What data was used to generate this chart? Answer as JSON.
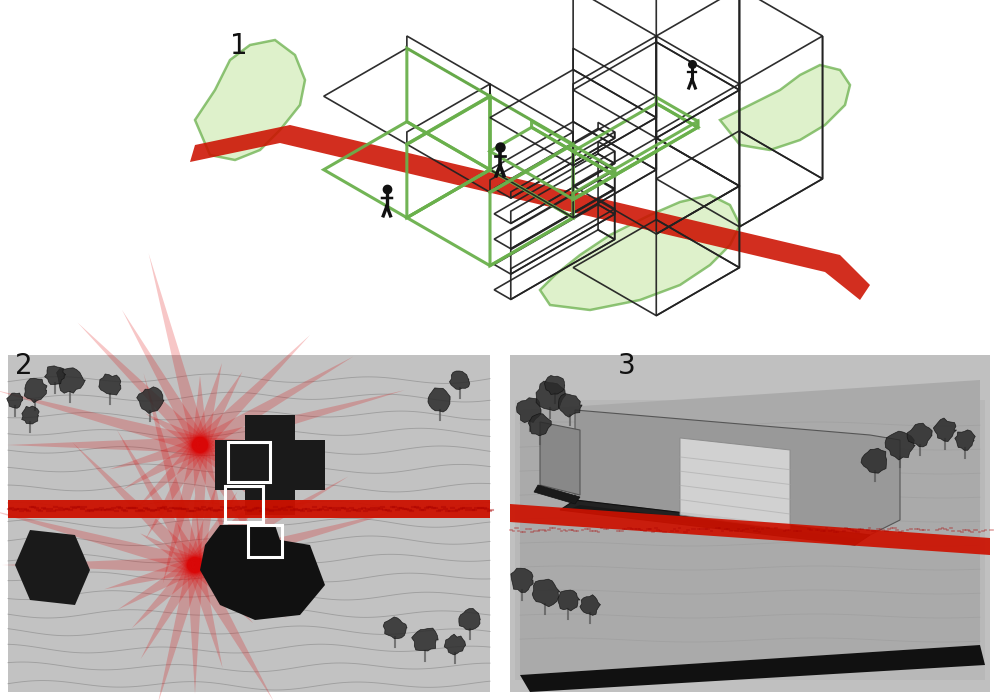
{
  "background_color": "#ffffff",
  "label_1": "1",
  "label_2": "2",
  "label_3": "3",
  "label_fontsize": 20,
  "label_color": "#111111",
  "fig_width": 10.0,
  "fig_height": 7.0,
  "green_fill_color": "#d4edba",
  "green_stroke_color": "#6ab04c",
  "red_color": "#cc1100",
  "panel2_bg": "#b8b8b8",
  "panel3_bg": "#b5b5b5"
}
